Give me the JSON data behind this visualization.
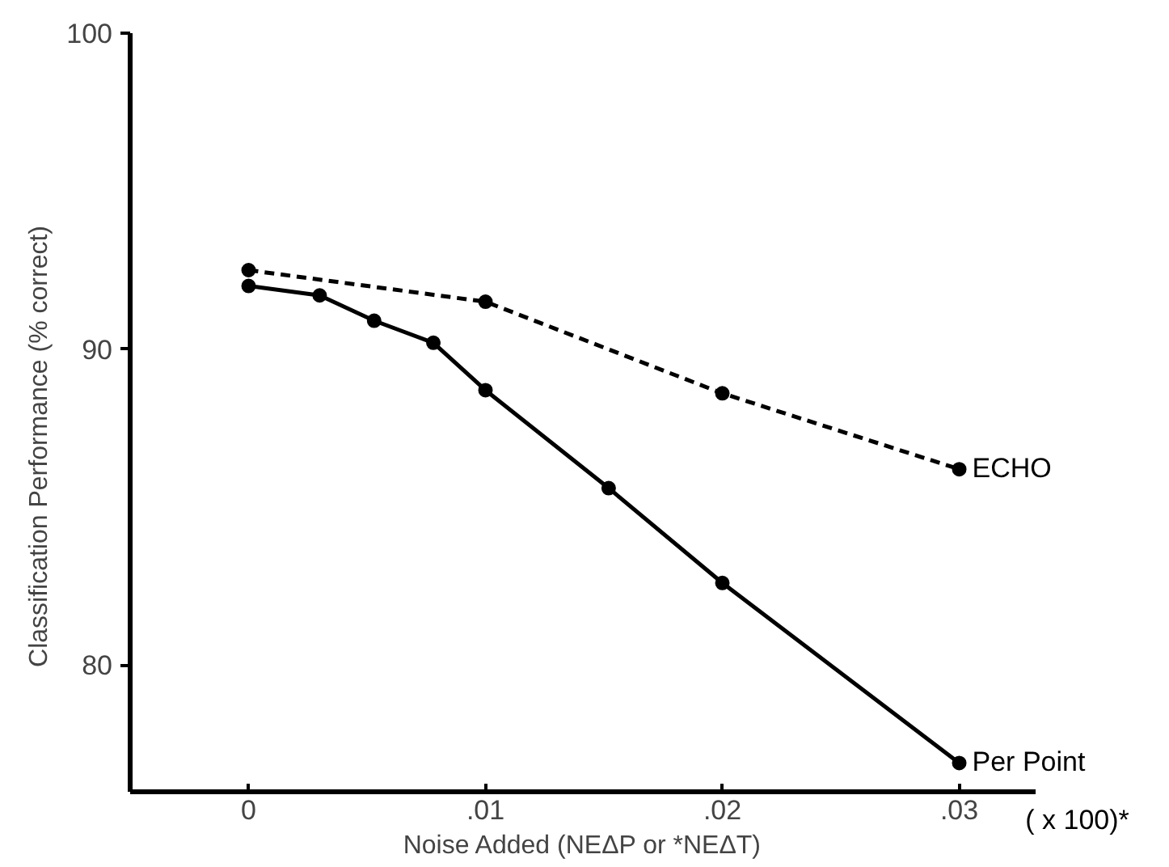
{
  "chart_data": {
    "type": "line",
    "xlabel": "Noise Added (NEΔP or *NEΔT)",
    "ylabel": "Classification Performance (% correct)",
    "annotations": [
      "( x 100)*"
    ],
    "xlim": [
      -0.005,
      0.0332
    ],
    "ylim": [
      76,
      100
    ],
    "xticks": [
      {
        "value": 0,
        "label": "0"
      },
      {
        "value": 0.01,
        "label": ".01"
      },
      {
        "value": 0.02,
        "label": ".02"
      },
      {
        "value": 0.03,
        "label": ".03"
      }
    ],
    "yticks": [
      80,
      90,
      100
    ],
    "grid": false,
    "legend": false,
    "marker": "circle",
    "series": [
      {
        "name": "ECHO",
        "color": "#000000",
        "line_style": "dashed",
        "x": [
          0,
          0.01,
          0.02,
          0.03
        ],
        "values": [
          92.5,
          91.5,
          88.6,
          86.2
        ]
      },
      {
        "name": "Per Point",
        "color": "#000000",
        "line_style": "solid",
        "x": [
          0,
          0.003,
          0.0053,
          0.0078,
          0.01,
          0.0152,
          0.02,
          0.03
        ],
        "values": [
          92.0,
          91.7,
          90.9,
          90.2,
          88.7,
          85.6,
          82.6,
          76.9
        ]
      }
    ]
  }
}
